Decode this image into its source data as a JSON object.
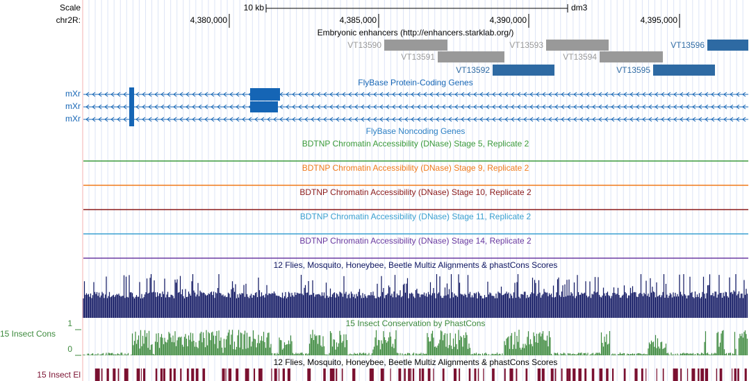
{
  "header": {
    "scale_label": "Scale",
    "scale_bar": "10 kb",
    "assembly": "dm3",
    "chrom": "chr2R:",
    "positions": [
      "4,380,000",
      "4,385,000",
      "4,390,000",
      "4,395,000"
    ]
  },
  "enhancers": {
    "title": "Embryonic enhancers (http://enhancers.starklab.org/)",
    "items": [
      {
        "label": "VT13590",
        "color": "#999999"
      },
      {
        "label": "VT13591",
        "color": "#999999"
      },
      {
        "label": "VT13592",
        "color": "#2e6aa3"
      },
      {
        "label": "VT13593",
        "color": "#999999"
      },
      {
        "label": "VT13594",
        "color": "#999999"
      },
      {
        "label": "VT13595",
        "color": "#2e6aa3"
      },
      {
        "label": "VT13596",
        "color": "#2e6aa3"
      }
    ]
  },
  "genes": {
    "title": "FlyBase Protein-Coding Genes",
    "color": "#1565b5",
    "names": [
      "mXr",
      "mXr",
      "mXr"
    ]
  },
  "noncoding": {
    "title": "FlyBase Noncoding Genes",
    "color": "#2b7fc4"
  },
  "dnase": [
    {
      "title": "BDTNP Chromatin Accessibility (DNase) Stage 5, Replicate 2",
      "color": "#3a9a3a"
    },
    {
      "title": "BDTNP Chromatin Accessibility (DNase) Stage 9, Replicate 2",
      "color": "#f07a1a"
    },
    {
      "title": "BDTNP Chromatin Accessibility (DNase) Stage 10, Replicate 2",
      "color": "#8b1a1a"
    },
    {
      "title": "BDTNP Chromatin Accessibility (DNase) Stage 11, Replicate 2",
      "color": "#3aa0d0"
    },
    {
      "title": "BDTNP Chromatin Accessibility (DNase) Stage 14, Replicate 2",
      "color": "#6a3aa0"
    }
  ],
  "multiz": {
    "title": "12 Flies, Mosquito, Honeybee, Beetle Multiz Alignments & phastCons Scores",
    "color": "#0d1460"
  },
  "phastcons": {
    "title": "15 Insect Conservation by PhastCons",
    "label": "15 Insect Cons",
    "axis_top": "1",
    "axis_bottom": "0",
    "color": "#3d8a3d"
  },
  "elements": {
    "title": "12 Flies, Mosquito, Honeybee, Beetle Multiz Alignments & phastCons Scores",
    "label": "15 Insect El",
    "color": "#7a1030"
  }
}
